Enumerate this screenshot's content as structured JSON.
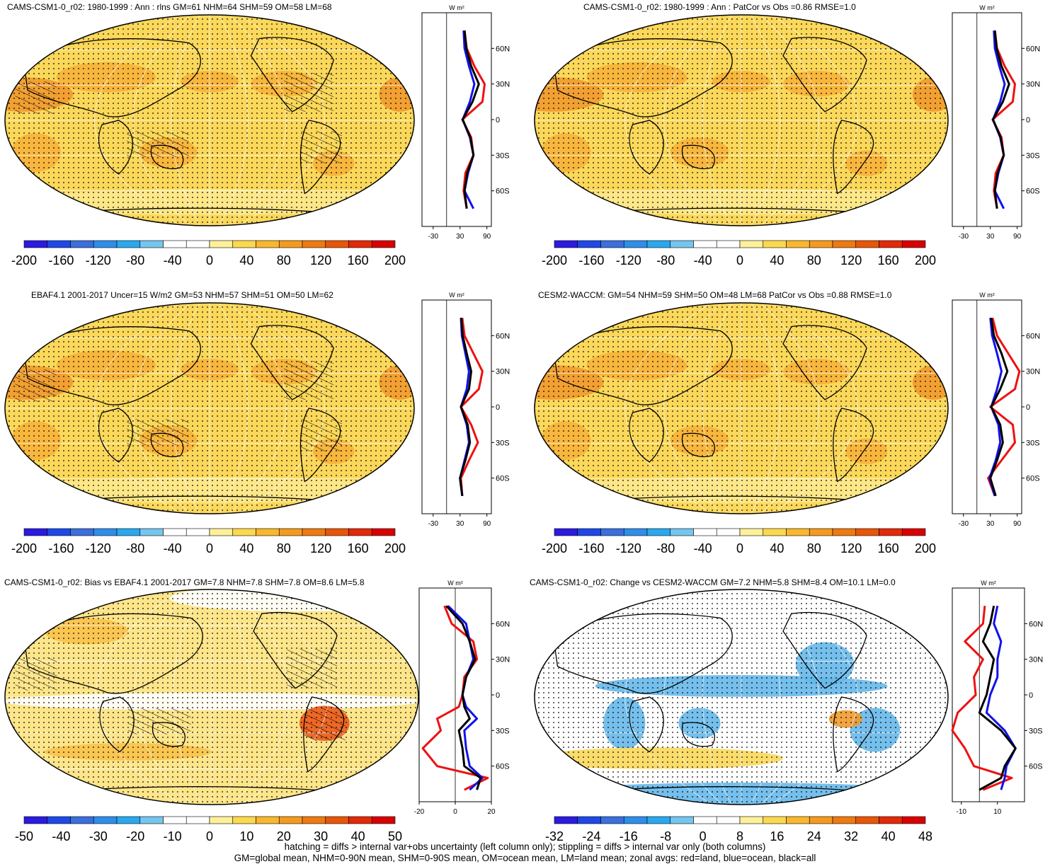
{
  "panels": [
    {
      "id": "p1",
      "title": "CAMS-CSM1-0_r02: 1980-1999 : Ann : rlns GM=61 NHM=64 SHM=59 OM=58 LM=68",
      "colorbar_labels": [
        "-200",
        "-160",
        "-120",
        "-80",
        "-40",
        "0",
        "40",
        "80",
        "120",
        "160",
        "200"
      ],
      "zonal_unit": "W m²",
      "zonal_lat_labels": [
        "60N",
        "30N",
        "0",
        "30S",
        "60S"
      ],
      "zonal_x_labels": [
        "-30",
        "30",
        "90"
      ]
    },
    {
      "id": "p2",
      "title": "CAMS-CSM1-0_r02: 1980-1999 : Ann : PatCor vs Obs =0.86 RMSE=1.0",
      "colorbar_labels": [
        "-200",
        "-160",
        "-120",
        "-80",
        "-40",
        "0",
        "40",
        "80",
        "120",
        "160",
        "200"
      ],
      "zonal_unit": "W m²",
      "zonal_lat_labels": [
        "60N",
        "30N",
        "0",
        "30S",
        "60S"
      ],
      "zonal_x_labels": [
        "-30",
        "30",
        "90"
      ]
    },
    {
      "id": "p3",
      "title": "EBAF4.1 2001-2017 Uncer=15 W/m2 GM=53 NHM=57 SHM=51 OM=50 LM=62",
      "colorbar_labels": [
        "-200",
        "-160",
        "-120",
        "-80",
        "-40",
        "0",
        "40",
        "80",
        "120",
        "160",
        "200"
      ],
      "zonal_unit": "W m²",
      "zonal_lat_labels": [
        "60N",
        "30N",
        "0",
        "30S",
        "60S"
      ],
      "zonal_x_labels": [
        "-30",
        "30",
        "90"
      ]
    },
    {
      "id": "p4",
      "title": "CESM2-WACCM: GM=54 NHM=59 SHM=50 OM=48 LM=68 PatCor vs Obs =0.88 RMSE=1.0",
      "colorbar_labels": [
        "-200",
        "-160",
        "-120",
        "-80",
        "-40",
        "0",
        "40",
        "80",
        "120",
        "160",
        "200"
      ],
      "zonal_unit": "W m²",
      "zonal_lat_labels": [
        "60N",
        "30N",
        "0",
        "30S",
        "60S"
      ],
      "zonal_x_labels": [
        "-30",
        "30",
        "90"
      ]
    },
    {
      "id": "p5",
      "title": "CAMS-CSM1-0_r02: Bias vs EBAF4.1 2001-2017 GM=7.8 NHM=7.8 SHM=7.8 OM=8.6 LM=5.8",
      "colorbar_labels": [
        "-50",
        "-40",
        "-30",
        "-20",
        "-10",
        "0",
        "10",
        "20",
        "30",
        "40",
        "50"
      ],
      "zonal_unit": "W m²",
      "zonal_lat_labels": [
        "60N",
        "30N",
        "0",
        "30S",
        "60S"
      ],
      "zonal_x_labels": [
        "-20",
        "0",
        "20"
      ]
    },
    {
      "id": "p6",
      "title": "CAMS-CSM1-0_r02: Change vs CESM2-WACCM GM=7.2 NHM=5.8 SHM=8.4 OM=10.1 LM=0.0",
      "colorbar_labels": [
        "-32",
        "-24",
        "-16",
        "-8",
        "0",
        "8",
        "16",
        "24",
        "32",
        "40",
        "48"
      ],
      "zonal_unit": "W m²",
      "zonal_lat_labels": [
        "60N",
        "30N",
        "0",
        "30S",
        "60S"
      ],
      "zonal_x_labels": [
        "-10",
        "10"
      ]
    }
  ],
  "footer": {
    "line1": "hatching = diffs > internal var+obs uncertainty (left column only); stippling = diffs > internal var only (both columns)",
    "line2": "GM=global mean, NHM=0-90N mean, SHM=0-90S mean, OM=ocean mean, LM=land mean; zonal avgs: red=land, blue=ocean, black=all"
  },
  "colors": {
    "colorbar": [
      "#2b1be0",
      "#1f48e6",
      "#3a6fdc",
      "#2e8ee8",
      "#2aa8ee",
      "#74c6ee",
      "#ffffff",
      "#ffffff",
      "#fef09a",
      "#fcd84e",
      "#f9b72f",
      "#f39a1f",
      "#ee7a12",
      "#e8560a",
      "#e22a06",
      "#d90000"
    ],
    "land": "#ee1111",
    "ocean": "#1111ee",
    "all": "#000000"
  },
  "chart_data": [
    {
      "type": "heatmap",
      "title": "CAMS-CSM1-0_r02: 1980-1999 : Ann : rlns GM=61 NHM=64 SHM=59 OM=58 LM=68",
      "colorbar_ticks": [
        -200,
        -160,
        -120,
        -80,
        -40,
        0,
        40,
        80,
        120,
        160,
        200
      ],
      "zonal": {
        "x_ticks": [
          -30,
          30,
          90
        ],
        "lat_ticks": [
          "60N",
          "30N",
          "0",
          "30S",
          "60S"
        ],
        "xlim": [
          -55,
          100
        ],
        "lats": [
          -75,
          -60,
          -45,
          -30,
          -15,
          0,
          15,
          30,
          45,
          60,
          75
        ],
        "series": [
          {
            "name": "land",
            "values": [
              45,
              38,
              42,
              60,
              55,
              35,
              80,
              85,
              62,
              45,
              40
            ]
          },
          {
            "name": "ocean",
            "values": [
              60,
              40,
              48,
              60,
              52,
              36,
              52,
              62,
              50,
              40,
              38
            ]
          },
          {
            "name": "all",
            "values": [
              45,
              40,
              46,
              60,
              53,
              36,
              58,
              72,
              55,
              44,
              40
            ]
          }
        ]
      }
    },
    {
      "type": "heatmap",
      "title": "CAMS-CSM1-0_r02: 1980-1999 : Ann : PatCor vs Obs =0.86 RMSE=1.0",
      "colorbar_ticks": [
        -200,
        -160,
        -120,
        -80,
        -40,
        0,
        40,
        80,
        120,
        160,
        200
      ],
      "zonal": {
        "x_ticks": [
          -30,
          30,
          90
        ],
        "lat_ticks": [
          "60N",
          "30N",
          "0",
          "30S",
          "60S"
        ],
        "xlim": [
          -55,
          100
        ],
        "lats": [
          -75,
          -60,
          -45,
          -30,
          -15,
          0,
          15,
          30,
          45,
          60,
          75
        ],
        "series": [
          {
            "name": "land",
            "values": [
              45,
              38,
              42,
              60,
              55,
              35,
              80,
              85,
              62,
              45,
              40
            ]
          },
          {
            "name": "ocean",
            "values": [
              60,
              40,
              48,
              60,
              52,
              36,
              52,
              62,
              50,
              40,
              38
            ]
          },
          {
            "name": "all",
            "values": [
              45,
              40,
              46,
              60,
              53,
              36,
              58,
              72,
              55,
              44,
              40
            ]
          }
        ]
      }
    },
    {
      "type": "heatmap",
      "title": "EBAF4.1 2001-2017 Uncer=15 W/m2 GM=53 NHM=57 SHM=51 OM=50 LM=62",
      "colorbar_ticks": [
        -200,
        -160,
        -120,
        -80,
        -40,
        0,
        40,
        80,
        120,
        160,
        200
      ],
      "zonal": {
        "x_ticks": [
          -30,
          30,
          90
        ],
        "lat_ticks": [
          "60N",
          "30N",
          "0",
          "30S",
          "60S"
        ],
        "xlim": [
          -55,
          100
        ],
        "lats": [
          -75,
          -60,
          -45,
          -30,
          -15,
          0,
          15,
          30,
          45,
          60,
          75
        ],
        "series": [
          {
            "name": "land",
            "values": [
              35,
              32,
              50,
              70,
              55,
              32,
              72,
              80,
              60,
              40,
              35
            ]
          },
          {
            "name": "ocean",
            "values": [
              35,
              30,
              40,
              50,
              45,
              32,
              45,
              50,
              42,
              34,
              32
            ]
          },
          {
            "name": "all",
            "values": [
              35,
              30,
              42,
              52,
              47,
              32,
              50,
              55,
              45,
              36,
              33
            ]
          }
        ]
      }
    },
    {
      "type": "heatmap",
      "title": "CESM2-WACCM: GM=54 NHM=59 SHM=50 OM=48 LM=68 PatCor vs Obs =0.88 RMSE=1.0",
      "colorbar_ticks": [
        -200,
        -160,
        -120,
        -80,
        -40,
        0,
        40,
        80,
        120,
        160,
        200
      ],
      "zonal": {
        "x_ticks": [
          -30,
          30,
          90
        ],
        "lat_ticks": [
          "60N",
          "30N",
          "0",
          "30S",
          "60S"
        ],
        "xlim": [
          -55,
          100
        ],
        "lats": [
          -75,
          -60,
          -45,
          -30,
          -15,
          0,
          15,
          30,
          45,
          60,
          75
        ],
        "series": [
          {
            "name": "land",
            "values": [
              40,
              25,
              55,
              85,
              80,
              30,
              85,
              95,
              70,
              45,
              35
            ]
          },
          {
            "name": "ocean",
            "values": [
              40,
              28,
              42,
              52,
              48,
              32,
              45,
              55,
              45,
              34,
              30
            ]
          },
          {
            "name": "all",
            "values": [
              42,
              30,
              45,
              58,
              52,
              32,
              52,
              68,
              55,
              38,
              32
            ]
          }
        ]
      }
    },
    {
      "type": "heatmap",
      "title": "CAMS-CSM1-0_r02: Bias vs EBAF4.1 2001-2017 GM=7.8 NHM=7.8 SHM=7.8 OM=8.6 LM=5.8",
      "colorbar_ticks": [
        -50,
        -40,
        -30,
        -20,
        -10,
        0,
        10,
        20,
        30,
        40,
        50
      ],
      "zonal": {
        "x_ticks": [
          -20,
          0,
          20
        ],
        "lat_ticks": [
          "60N",
          "30N",
          "0",
          "30S",
          "60S"
        ],
        "xlim": [
          -20,
          20
        ],
        "lats": [
          -80,
          -70,
          -60,
          -45,
          -30,
          -20,
          -10,
          0,
          15,
          30,
          45,
          60,
          75
        ],
        "series": [
          {
            "name": "land",
            "values": [
              5,
              18,
              -10,
              -18,
              -8,
              -10,
              2,
              4,
              5,
              12,
              10,
              -2,
              -6
            ]
          },
          {
            "name": "ocean",
            "values": [
              8,
              15,
              8,
              6,
              5,
              12,
              6,
              4,
              6,
              10,
              8,
              6,
              -4
            ]
          },
          {
            "name": "all",
            "values": [
              12,
              14,
              5,
              4,
              2,
              8,
              5,
              4,
              6,
              11,
              8,
              4,
              -5
            ]
          }
        ]
      }
    },
    {
      "type": "heatmap",
      "title": "CAMS-CSM1-0_r02: Change vs CESM2-WACCM GM=7.2 NHM=5.8 SHM=8.4 OM=10.1 LM=0.0",
      "colorbar_ticks": [
        -32,
        -24,
        -16,
        -8,
        0,
        8,
        16,
        24,
        32,
        40,
        48
      ],
      "zonal": {
        "x_ticks": [
          -10,
          10
        ],
        "lat_ticks": [
          "60N",
          "30N",
          "0",
          "30S",
          "60S"
        ],
        "xlim": [
          -15,
          25
        ],
        "lats": [
          -80,
          -70,
          -60,
          -45,
          -30,
          -15,
          0,
          15,
          30,
          45,
          60,
          75
        ],
        "series": [
          {
            "name": "land",
            "values": [
              2,
              18,
              -3,
              -8,
              -15,
              -12,
              -2,
              -3,
              2,
              -8,
              2,
              3
            ],
            "note_only_for_draw": null
          },
          {
            "name": "ocean",
            "values": [
              12,
              14,
              15,
              20,
              14,
              4,
              6,
              10,
              10,
              12,
              8,
              10
            ]
          },
          {
            "name": "all",
            "values": [
              0,
              12,
              14,
              20,
              12,
              0,
              4,
              6,
              8,
              2,
              6,
              8
            ]
          }
        ]
      }
    }
  ]
}
